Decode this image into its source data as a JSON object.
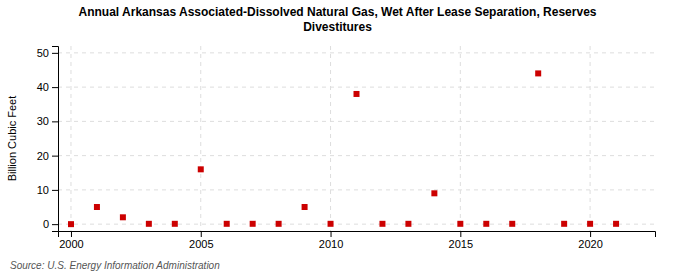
{
  "chart_data": {
    "type": "scatter",
    "title": "Annual Arkansas Associated-Dissolved Natural Gas, Wet After Lease Separation, Reserves\nDivestitures",
    "ylabel": "Billion Cubic Feet",
    "source": "Source: U.S. Energy Information Administration",
    "x": [
      2000,
      2001,
      2002,
      2003,
      2004,
      2005,
      2006,
      2007,
      2008,
      2009,
      2010,
      2011,
      2012,
      2013,
      2014,
      2015,
      2016,
      2017,
      2018,
      2019,
      2020,
      2021
    ],
    "values": [
      0.0,
      5.0,
      2.0,
      0.1,
      0.1,
      16.0,
      0.1,
      0.1,
      0.1,
      5.0,
      0.1,
      38.0,
      0.1,
      0.1,
      9.0,
      0.1,
      0.1,
      0.1,
      44.0,
      0.1,
      0.1,
      0.1
    ],
    "color": "#cc0000",
    "marker": "square",
    "xlim": [
      1999.5,
      2022.5
    ],
    "ylim": [
      -2,
      52
    ],
    "xticks": [
      2000,
      2005,
      2010,
      2015,
      2020
    ],
    "yticks": [
      0,
      10,
      20,
      30,
      40,
      50
    ],
    "grid": true
  }
}
